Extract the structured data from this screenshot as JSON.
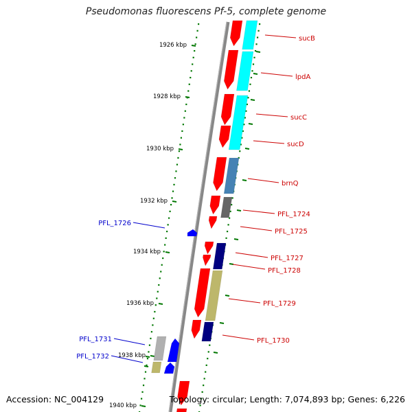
{
  "title": "Pseudomonas fluorescens Pf-5, complete genome",
  "footer": {
    "accession": "Accession: NC_004129",
    "topology": "Topology: circular; Length: 7,074,893 bp; Genes: 6,226"
  },
  "colors": {
    "forward_gene": "#ff0000",
    "reverse_gene": "#0000ff",
    "label_forward": "#cc0000",
    "label_reverse": "#0000cc",
    "backbone": "#888888",
    "ticks": "#007700"
  },
  "axis": {
    "unit": "kbp",
    "ticks": [
      "1926 kbp",
      "1928 kbp",
      "1930 kbp",
      "1932 kbp",
      "1934 kbp",
      "1936 kbp",
      "1938 kbp",
      "1940 kbp"
    ]
  },
  "genes": [
    {
      "label": "sucB",
      "side": "right",
      "name_color": "#cc0000",
      "arrow": "#ff0000",
      "track": "#00ffff"
    },
    {
      "label": "lpdA",
      "side": "right",
      "name_color": "#cc0000",
      "arrow": "#ff0000",
      "track": "#00ffff"
    },
    {
      "label": "sucC",
      "side": "right",
      "name_color": "#cc0000",
      "arrow": "#ff0000",
      "track": "#00ffff"
    },
    {
      "label": "sucD",
      "side": "right",
      "name_color": "#cc0000",
      "arrow": "#ff0000",
      "track": "#00ffff"
    },
    {
      "label": "brnQ",
      "side": "right",
      "name_color": "#cc0000",
      "arrow": "#ff0000",
      "track": "#4682b4"
    },
    {
      "label": "PFL_1724",
      "side": "right",
      "name_color": "#cc0000",
      "arrow": "#ff0000",
      "track": "#666666"
    },
    {
      "label": "PFL_1725",
      "side": "right",
      "name_color": "#cc0000",
      "arrow": "#ff0000",
      "track": ""
    },
    {
      "label": "PFL_1726",
      "side": "left",
      "name_color": "#0000cc",
      "arrow": "#0000ff",
      "track": ""
    },
    {
      "label": "PFL_1727",
      "side": "right",
      "name_color": "#cc0000",
      "arrow": "#ff0000",
      "track": "#000080"
    },
    {
      "label": "PFL_1728",
      "side": "right",
      "name_color": "#cc0000",
      "arrow": "#ff0000",
      "track": "#000080"
    },
    {
      "label": "PFL_1729",
      "side": "right",
      "name_color": "#cc0000",
      "arrow": "#ff0000",
      "track": "#bdb76b"
    },
    {
      "label": "PFL_1730",
      "side": "right",
      "name_color": "#cc0000",
      "arrow": "#ff0000",
      "track": "#000080"
    },
    {
      "label": "PFL_1731",
      "side": "left",
      "name_color": "#0000cc",
      "arrow": "#0000ff",
      "track": "#b0b0b0"
    },
    {
      "label": "PFL_1732",
      "side": "left",
      "name_color": "#0000cc",
      "arrow": "#0000ff",
      "track": "#bdb76b"
    }
  ]
}
